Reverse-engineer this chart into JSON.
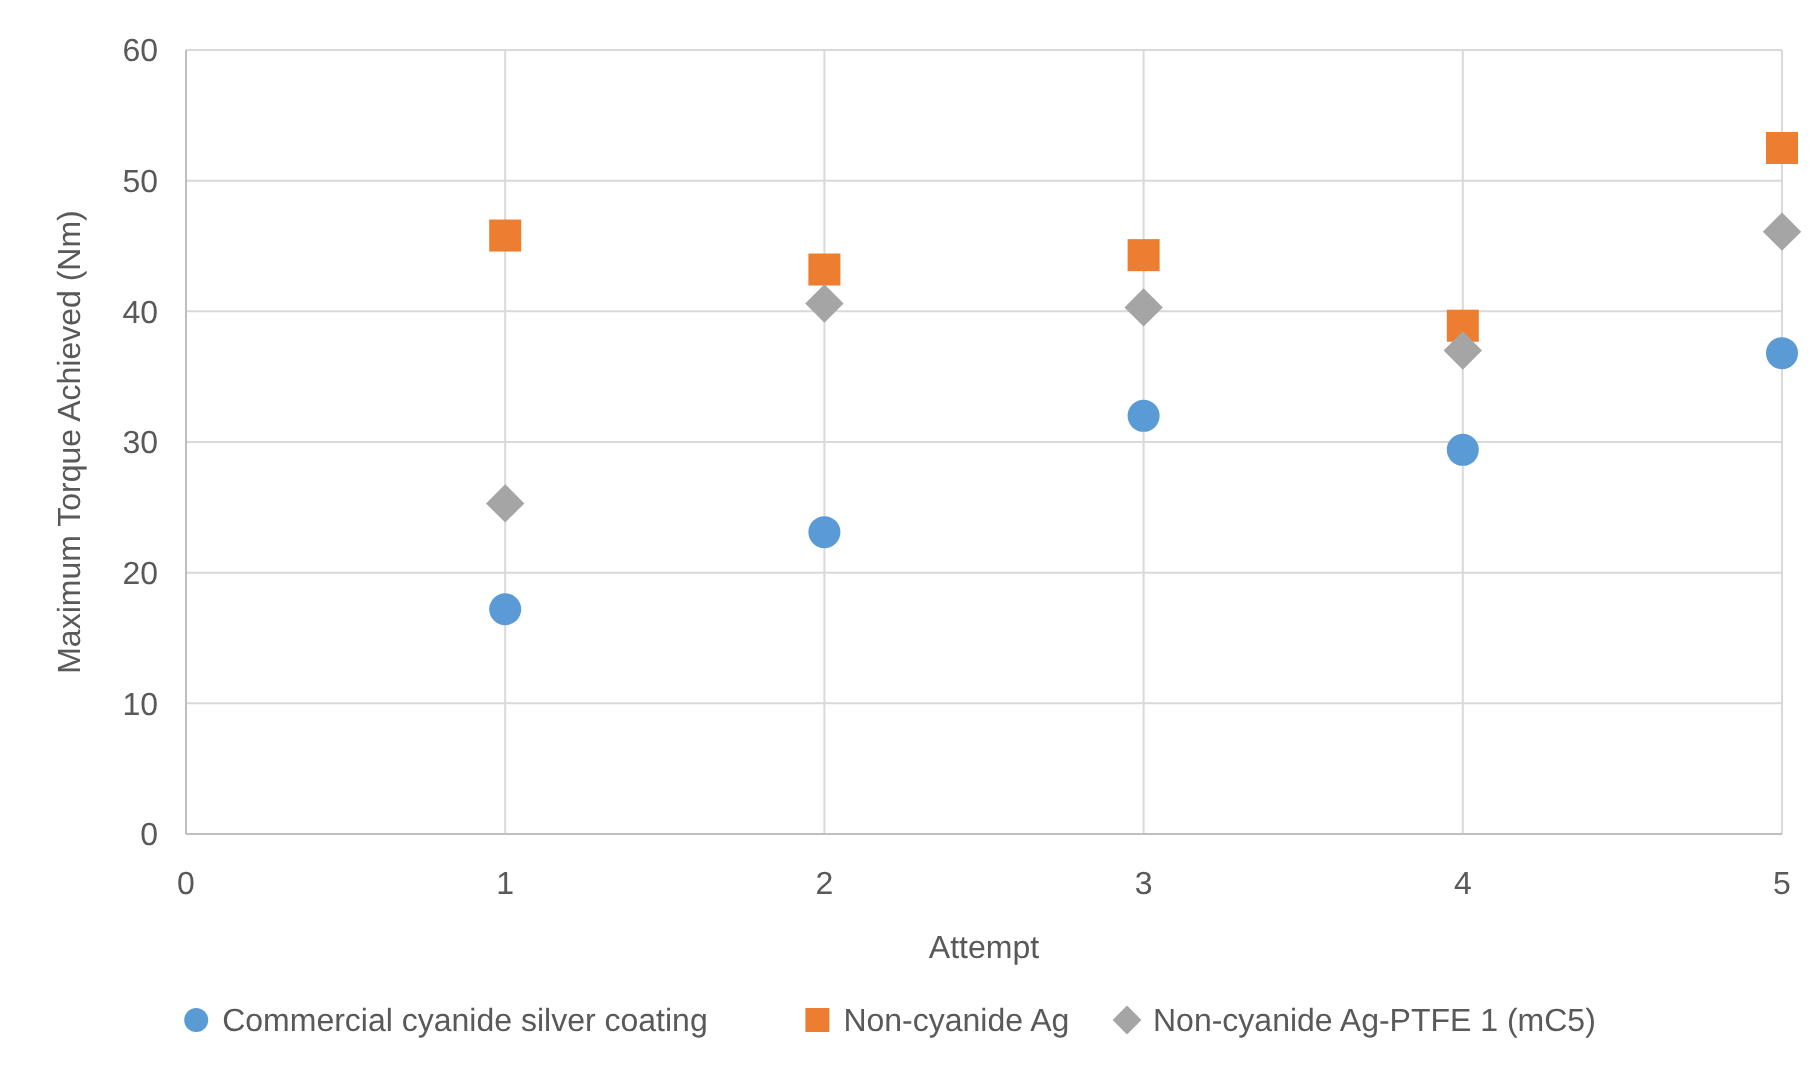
{
  "chart_data": {
    "type": "scatter",
    "xlabel": "Attempt",
    "ylabel": "Maximum Torque Achieved (Nm)",
    "x": [
      1,
      2,
      3,
      4,
      5
    ],
    "xlim": [
      0,
      5
    ],
    "xticks": [
      0,
      1,
      2,
      3,
      4,
      5
    ],
    "ylim": [
      0,
      60
    ],
    "yticks": [
      0,
      10,
      20,
      30,
      40,
      50,
      60
    ],
    "grid": true,
    "legend": "bottom",
    "series": [
      {
        "name": "Commercial cyanide silver coating",
        "color": "#5b9bd5",
        "marker": "circle",
        "values": [
          17.2,
          23.1,
          32.0,
          29.4,
          36.8
        ]
      },
      {
        "name": "Non-cyanide Ag",
        "color": "#ed7d31",
        "marker": "square",
        "values": [
          45.8,
          43.2,
          44.3,
          38.9,
          52.5
        ]
      },
      {
        "name": "Non-cyanide Ag-PTFE 1 (mC5)",
        "color": "#a5a5a5",
        "marker": "diamond",
        "values": [
          25.3,
          40.6,
          40.3,
          37.0,
          46.1
        ]
      }
    ]
  }
}
